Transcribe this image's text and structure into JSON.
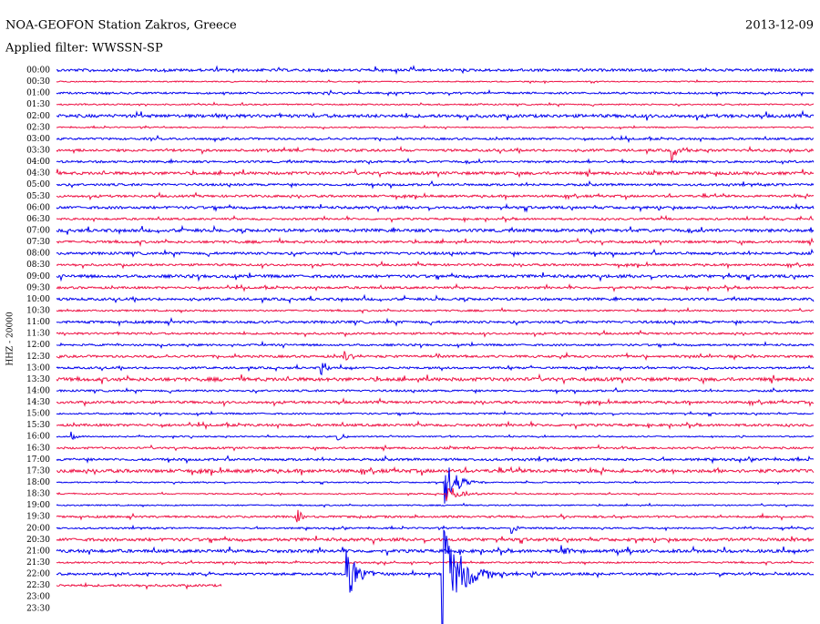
{
  "header": {
    "title": "NOA-GEOFON Station Zakros, Greece",
    "date": "2013-12-09",
    "filter": "Applied filter: WWSSN-SP"
  },
  "axis_label": "HHZ - 20000",
  "rows": [
    "00:00",
    "00:30",
    "01:00",
    "01:30",
    "02:00",
    "02:30",
    "03:00",
    "03:30",
    "04:00",
    "04:30",
    "05:00",
    "05:30",
    "06:00",
    "06:30",
    "07:00",
    "07:30",
    "08:00",
    "08:30",
    "09:00",
    "09:30",
    "10:00",
    "10:30",
    "11:00",
    "11:30",
    "12:00",
    "12:30",
    "13:00",
    "13:30",
    "14:00",
    "14:30",
    "15:00",
    "15:30",
    "16:00",
    "16:30",
    "17:00",
    "17:30",
    "18:00",
    "18:30",
    "19:00",
    "19:30",
    "20:00",
    "20:30",
    "21:00",
    "21:30",
    "22:00",
    "22:30",
    "23:00",
    "23:30"
  ]
}
